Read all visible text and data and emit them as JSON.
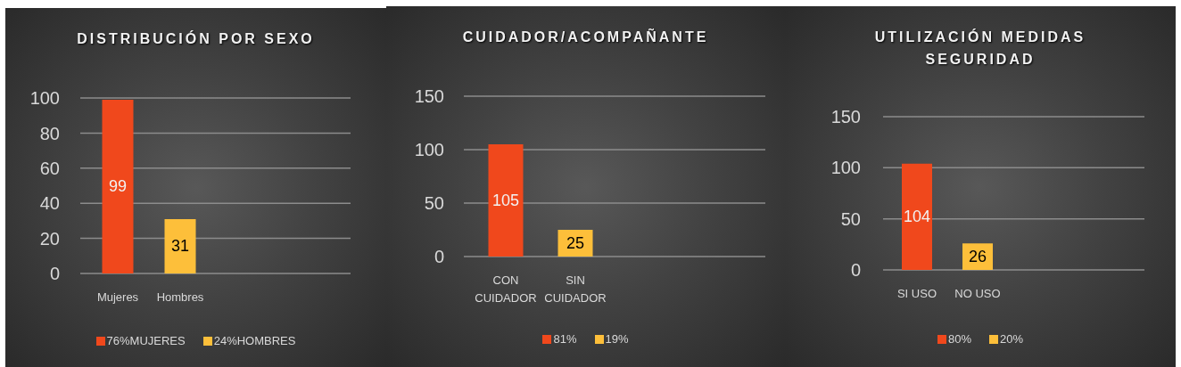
{
  "chart_data": [
    {
      "type": "bar",
      "title": "DISTRIBUCIÓN POR SEXO",
      "categories": [
        "Mujeres",
        "Hombres"
      ],
      "series": [
        {
          "name": "76%MUJERES",
          "color": "#f0481c",
          "values": [
            99,
            null
          ]
        },
        {
          "name": "24%HOMBRES",
          "color": "#fdbf3a",
          "values": [
            null,
            31
          ]
        }
      ],
      "ylim": [
        0,
        100
      ],
      "yticks": [
        0,
        20,
        40,
        60,
        80,
        100
      ],
      "grid": "y",
      "legend": "bottom",
      "data_labels": true
    },
    {
      "type": "bar",
      "title": "CUIDADOR/ACOMPAÑANTE",
      "categories": [
        "CON CUIDADOR",
        "SIN CUIDADOR"
      ],
      "series": [
        {
          "name": "81%",
          "color": "#f0481c",
          "values": [
            105,
            null
          ]
        },
        {
          "name": "19%",
          "color": "#fdbf3a",
          "values": [
            null,
            25
          ]
        }
      ],
      "ylim": [
        0,
        150
      ],
      "yticks": [
        0,
        50,
        100,
        150
      ],
      "grid": "y",
      "legend": "bottom",
      "data_labels": true
    },
    {
      "type": "bar",
      "title": "UTILIZACIÓN MEDIDAS SEGURIDAD",
      "categories": [
        "SI USO",
        "NO USO"
      ],
      "series": [
        {
          "name": "80%",
          "color": "#f0481c",
          "values": [
            104,
            null
          ]
        },
        {
          "name": "20%",
          "color": "#fdbf3a",
          "values": [
            null,
            26
          ]
        }
      ],
      "ylim": [
        0,
        150
      ],
      "yticks": [
        0,
        50,
        100,
        150
      ],
      "grid": "y",
      "legend": "bottom",
      "data_labels": true
    }
  ]
}
